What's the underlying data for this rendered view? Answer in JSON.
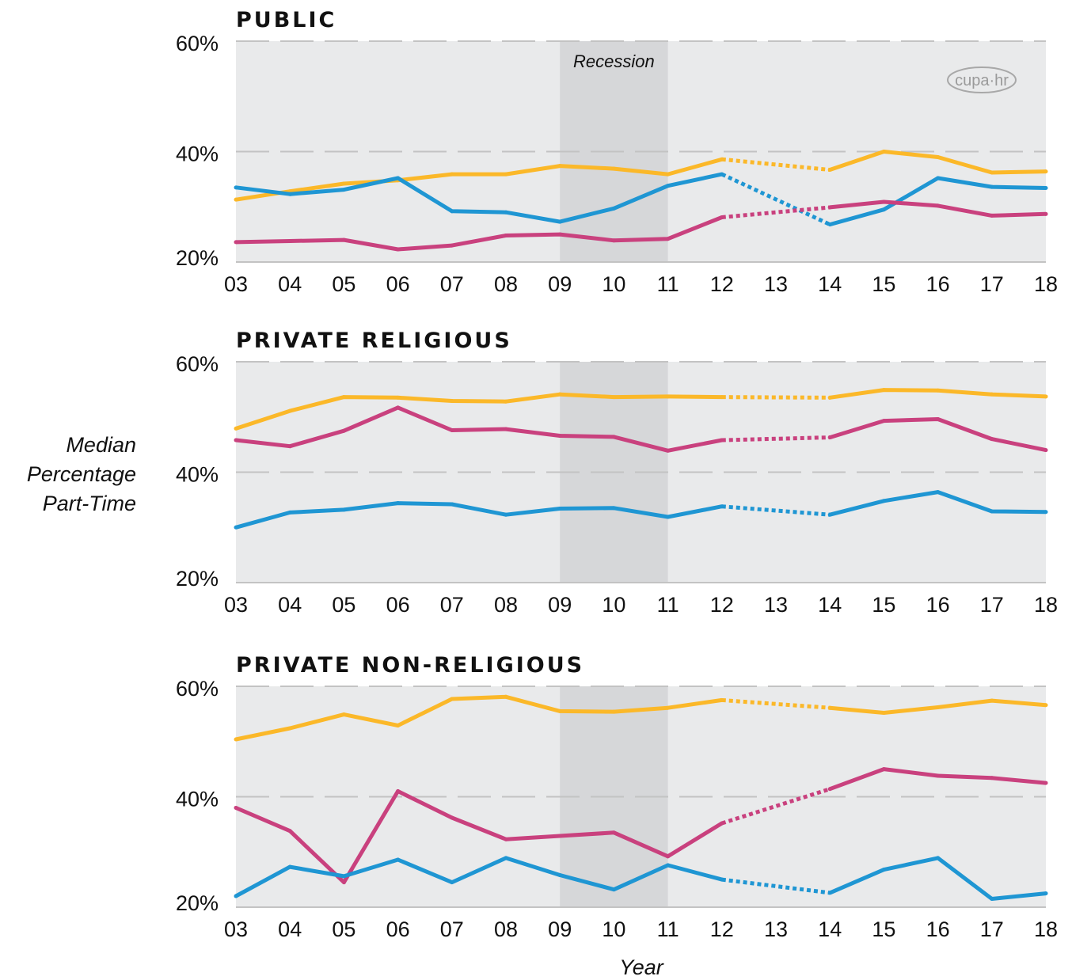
{
  "chart_data": {
    "type": "line",
    "ylabel": "Median Percentage Part-Time",
    "xlabel": "Year",
    "x": [
      "03",
      "04",
      "05",
      "06",
      "07",
      "08",
      "09",
      "10",
      "11",
      "12",
      "13",
      "14",
      "15",
      "16",
      "17",
      "18"
    ],
    "y_ticks": [
      "60%",
      "40%",
      "20%"
    ],
    "ylim": [
      20,
      60
    ],
    "recession": {
      "label": "Recession",
      "start": "09",
      "end": "11",
      "color": "#d6d7d9"
    },
    "logo": "cupa·hr",
    "dotted_segment": {
      "from": "12",
      "to": "14"
    },
    "colors": {
      "orange": "#fbb829",
      "blue": "#1f96d3",
      "magenta": "#c9417e",
      "panel_bg": "#e9eaeb",
      "grid": "#c3c3c3"
    },
    "panels": [
      {
        "title": "PUBLIC",
        "series": [
          {
            "color": "orange",
            "values": [
              31.3,
              32.8,
              34.2,
              34.8,
              35.9,
              35.9,
              37.4,
              36.9,
              35.9,
              38.6,
              null,
              36.7,
              40.0,
              39.0,
              36.2,
              36.4
            ]
          },
          {
            "color": "blue",
            "values": [
              33.5,
              32.3,
              33.1,
              35.2,
              29.2,
              29.0,
              27.3,
              29.7,
              33.8,
              35.9,
              null,
              26.8,
              29.5,
              35.2,
              33.6,
              33.4
            ]
          },
          {
            "color": "magenta",
            "values": [
              23.6,
              23.8,
              24.0,
              22.3,
              23.0,
              24.8,
              25.0,
              23.9,
              24.2,
              28.1,
              null,
              29.9,
              30.9,
              30.2,
              28.4,
              28.7
            ]
          }
        ]
      },
      {
        "title": "PRIVATE RELIGIOUS",
        "series": [
          {
            "color": "orange",
            "values": [
              47.9,
              51.1,
              53.6,
              53.5,
              52.9,
              52.8,
              54.1,
              53.6,
              53.7,
              53.6,
              null,
              53.5,
              54.9,
              54.8,
              54.1,
              53.7
            ]
          },
          {
            "color": "magenta",
            "values": [
              45.8,
              44.7,
              47.5,
              51.7,
              47.6,
              47.8,
              46.6,
              46.4,
              43.9,
              45.8,
              null,
              46.3,
              49.3,
              49.6,
              46.0,
              44.0
            ]
          },
          {
            "color": "blue",
            "values": [
              30.0,
              32.7,
              33.2,
              34.4,
              34.2,
              32.3,
              33.4,
              33.5,
              31.9,
              33.8,
              null,
              32.3,
              34.8,
              36.4,
              32.9,
              32.8
            ]
          }
        ]
      },
      {
        "title": "PRIVATE NON-RELIGIOUS",
        "series": [
          {
            "color": "orange",
            "values": [
              50.4,
              52.4,
              54.9,
              52.9,
              57.7,
              58.1,
              55.5,
              55.4,
              56.1,
              57.5,
              null,
              56.1,
              55.2,
              56.2,
              57.4,
              56.6
            ]
          },
          {
            "color": "magenta",
            "values": [
              38.0,
              33.8,
              24.5,
              41.0,
              36.2,
              32.3,
              32.9,
              33.5,
              29.2,
              35.2,
              null,
              41.4,
              45.0,
              43.8,
              43.4,
              42.5
            ]
          },
          {
            "color": "blue",
            "values": [
              22.0,
              27.3,
              25.6,
              28.6,
              24.5,
              28.9,
              25.8,
              23.2,
              27.6,
              25.0,
              null,
              22.6,
              26.8,
              28.9,
              21.5,
              22.5
            ]
          }
        ]
      }
    ]
  }
}
